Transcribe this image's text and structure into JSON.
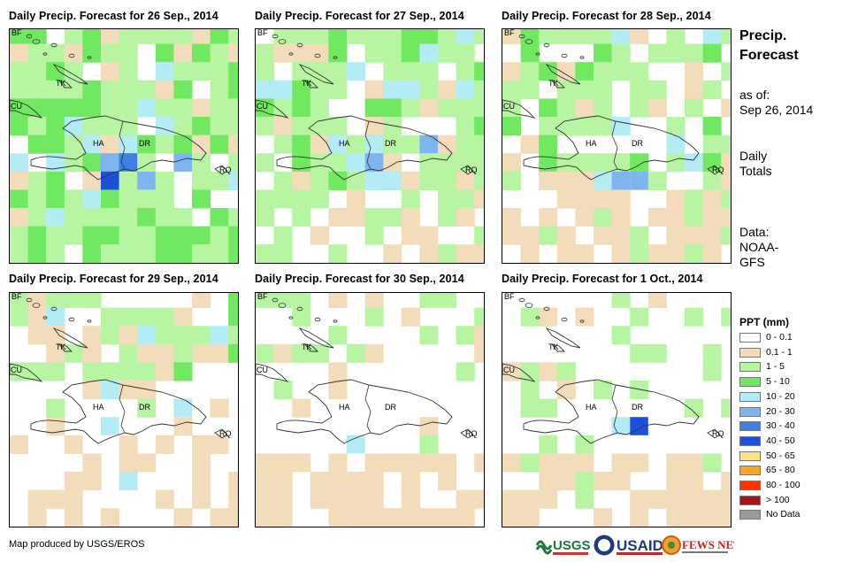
{
  "panels": [
    {
      "title": "Daily Precip. Forecast for 26 Sep., 2014"
    },
    {
      "title": "Daily Precip. Forecast for 27 Sep., 2014"
    },
    {
      "title": "Daily Precip. Forecast for 28 Sep., 2014"
    },
    {
      "title": "Daily Precip. Forecast for 29 Sep., 2014"
    },
    {
      "title": "Daily Precip. Forecast for 30 Sep., 2014"
    },
    {
      "title": "Daily Precip. Forecast for 1 Oct., 2014"
    }
  ],
  "map_labels": {
    "bf": "BF",
    "cu": "CU",
    "tk": "TK",
    "ha": "HA",
    "dr": "DR",
    "rq": "RQ"
  },
  "side": {
    "title_line1": "Precip.",
    "title_line2": "Forecast",
    "asof_line1": "as of:",
    "asof_line2": "Sep 26, 2014",
    "totals_line1": "Daily",
    "totals_line2": "Totals",
    "data_line1": "Data:",
    "data_line2": "NOAA-",
    "data_line3": "GFS"
  },
  "legend": {
    "title": "PPT (mm)",
    "items": [
      {
        "label": "0 - 0.1",
        "color": "#ffffff"
      },
      {
        "label": "0.1 - 1",
        "color": "#f2dcb9"
      },
      {
        "label": "1 - 5",
        "color": "#b7f5a3"
      },
      {
        "label": "5 - 10",
        "color": "#70e860"
      },
      {
        "label": "10 - 20",
        "color": "#b4ecf5"
      },
      {
        "label": "20 - 30",
        "color": "#7eb5f0"
      },
      {
        "label": "30 - 40",
        "color": "#3d7fe6"
      },
      {
        "label": "40 - 50",
        "color": "#1c50d8"
      },
      {
        "label": "50 - 65",
        "color": "#ffe27a"
      },
      {
        "label": "65 - 80",
        "color": "#ffa41f"
      },
      {
        "label": "80 - 100",
        "color": "#ff3300"
      },
      {
        "label": "> 100",
        "color": "#a8141b"
      },
      {
        "label": "No Data",
        "color": "#9a9a9a"
      }
    ]
  },
  "footer": {
    "credit": "Map produced by USGS/EROS"
  },
  "logos": {
    "usgs": "USGS",
    "usaid": "USAID",
    "fewsnet": "FEWS NET"
  }
}
